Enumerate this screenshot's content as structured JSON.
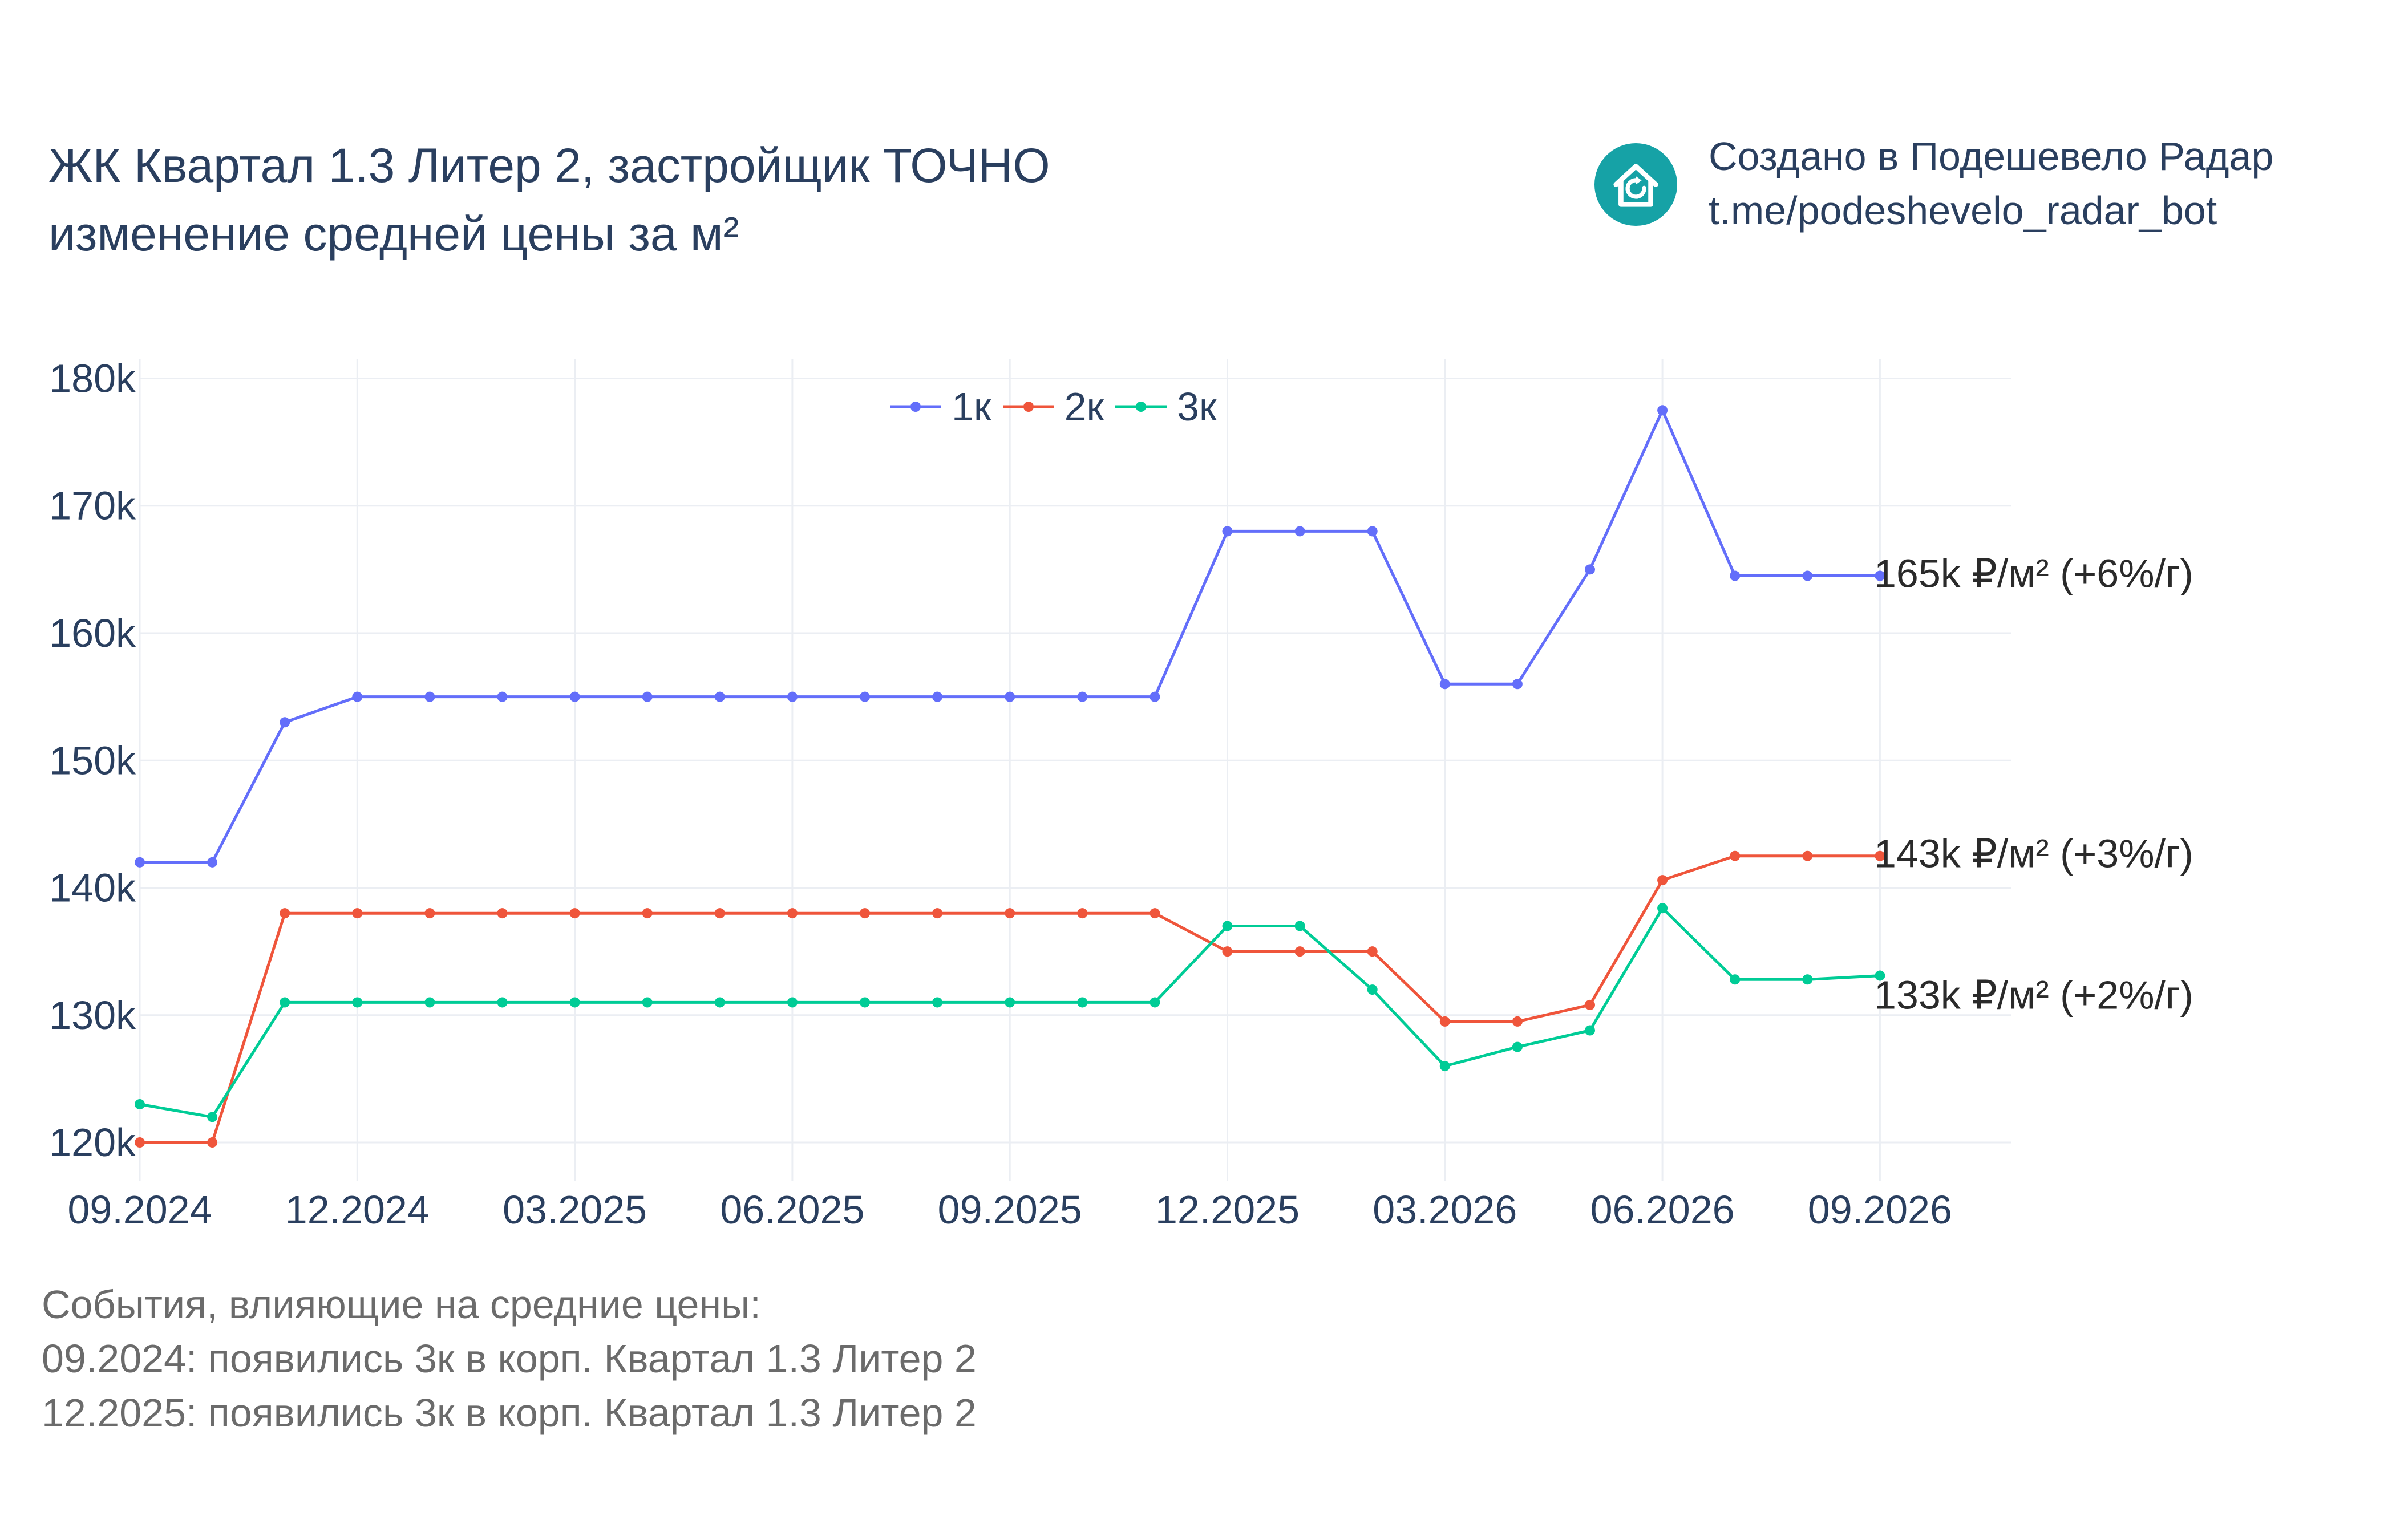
{
  "title": {
    "line1": "ЖК Квартал 1.3 Литер 2, застройщик ТОЧНО",
    "line2": "изменение средней цены за м²"
  },
  "brand": {
    "line1": "Создано в Подешевело Радар",
    "line2": "t.me/podeshevelo_radar_bot",
    "logo_color": "#16a2a6",
    "logo_icon": "house-refresh-icon"
  },
  "events": {
    "header": "События, влияющие на средние цены:",
    "items": [
      "09.2024: появились 3к в корп. Квартал 1.3 Литер 2",
      "12.2025: появились 3к в корп. Квартал 1.3 Литер 2"
    ]
  },
  "chart_data": {
    "type": "line",
    "x": [
      "09.2024",
      "10.2024",
      "11.2024",
      "12.2024",
      "01.2025",
      "02.2025",
      "03.2025",
      "04.2025",
      "05.2025",
      "06.2025",
      "07.2025",
      "08.2025",
      "09.2025",
      "10.2025",
      "11.2025",
      "12.2025",
      "01.2026",
      "02.2026",
      "03.2026",
      "04.2026",
      "05.2026",
      "06.2026",
      "07.2026",
      "08.2026",
      "09.2026"
    ],
    "x_ticks": [
      "09.2024",
      "12.2024",
      "03.2025",
      "06.2025",
      "09.2025",
      "12.2025",
      "03.2026",
      "06.2026",
      "09.2026"
    ],
    "y_ticks": [
      120000,
      130000,
      140000,
      150000,
      160000,
      170000,
      180000
    ],
    "y_tick_labels": [
      "120k",
      "130k",
      "140k",
      "150k",
      "160k",
      "170k",
      "180k"
    ],
    "ylim": [
      117000,
      181500
    ],
    "grid": true,
    "legend_position": "top-center",
    "series": [
      {
        "name": "1к",
        "color": "#636efa",
        "values": [
          142000,
          142000,
          153000,
          155000,
          155000,
          155000,
          155000,
          155000,
          155000,
          155000,
          155000,
          155000,
          155000,
          155000,
          155000,
          168000,
          168000,
          168000,
          156000,
          156000,
          165000,
          177500,
          164500,
          164500,
          164500
        ],
        "end_label": "165k ₽/м² (+6%/г)"
      },
      {
        "name": "2к",
        "color": "#ef553b",
        "values": [
          120000,
          120000,
          138000,
          138000,
          138000,
          138000,
          138000,
          138000,
          138000,
          138000,
          138000,
          138000,
          138000,
          138000,
          138000,
          135000,
          135000,
          135000,
          129500,
          129500,
          130800,
          140600,
          142500,
          142500,
          142500
        ],
        "end_label": "143k ₽/м² (+3%/г)"
      },
      {
        "name": "3к",
        "color": "#00cc96",
        "values": [
          123000,
          122000,
          131000,
          131000,
          131000,
          131000,
          131000,
          131000,
          131000,
          131000,
          131000,
          131000,
          131000,
          131000,
          131000,
          137000,
          137000,
          132000,
          126000,
          127500,
          128800,
          138400,
          132800,
          132800,
          133100
        ],
        "end_label": "133k ₽/м² (+2%/г)"
      }
    ]
  }
}
